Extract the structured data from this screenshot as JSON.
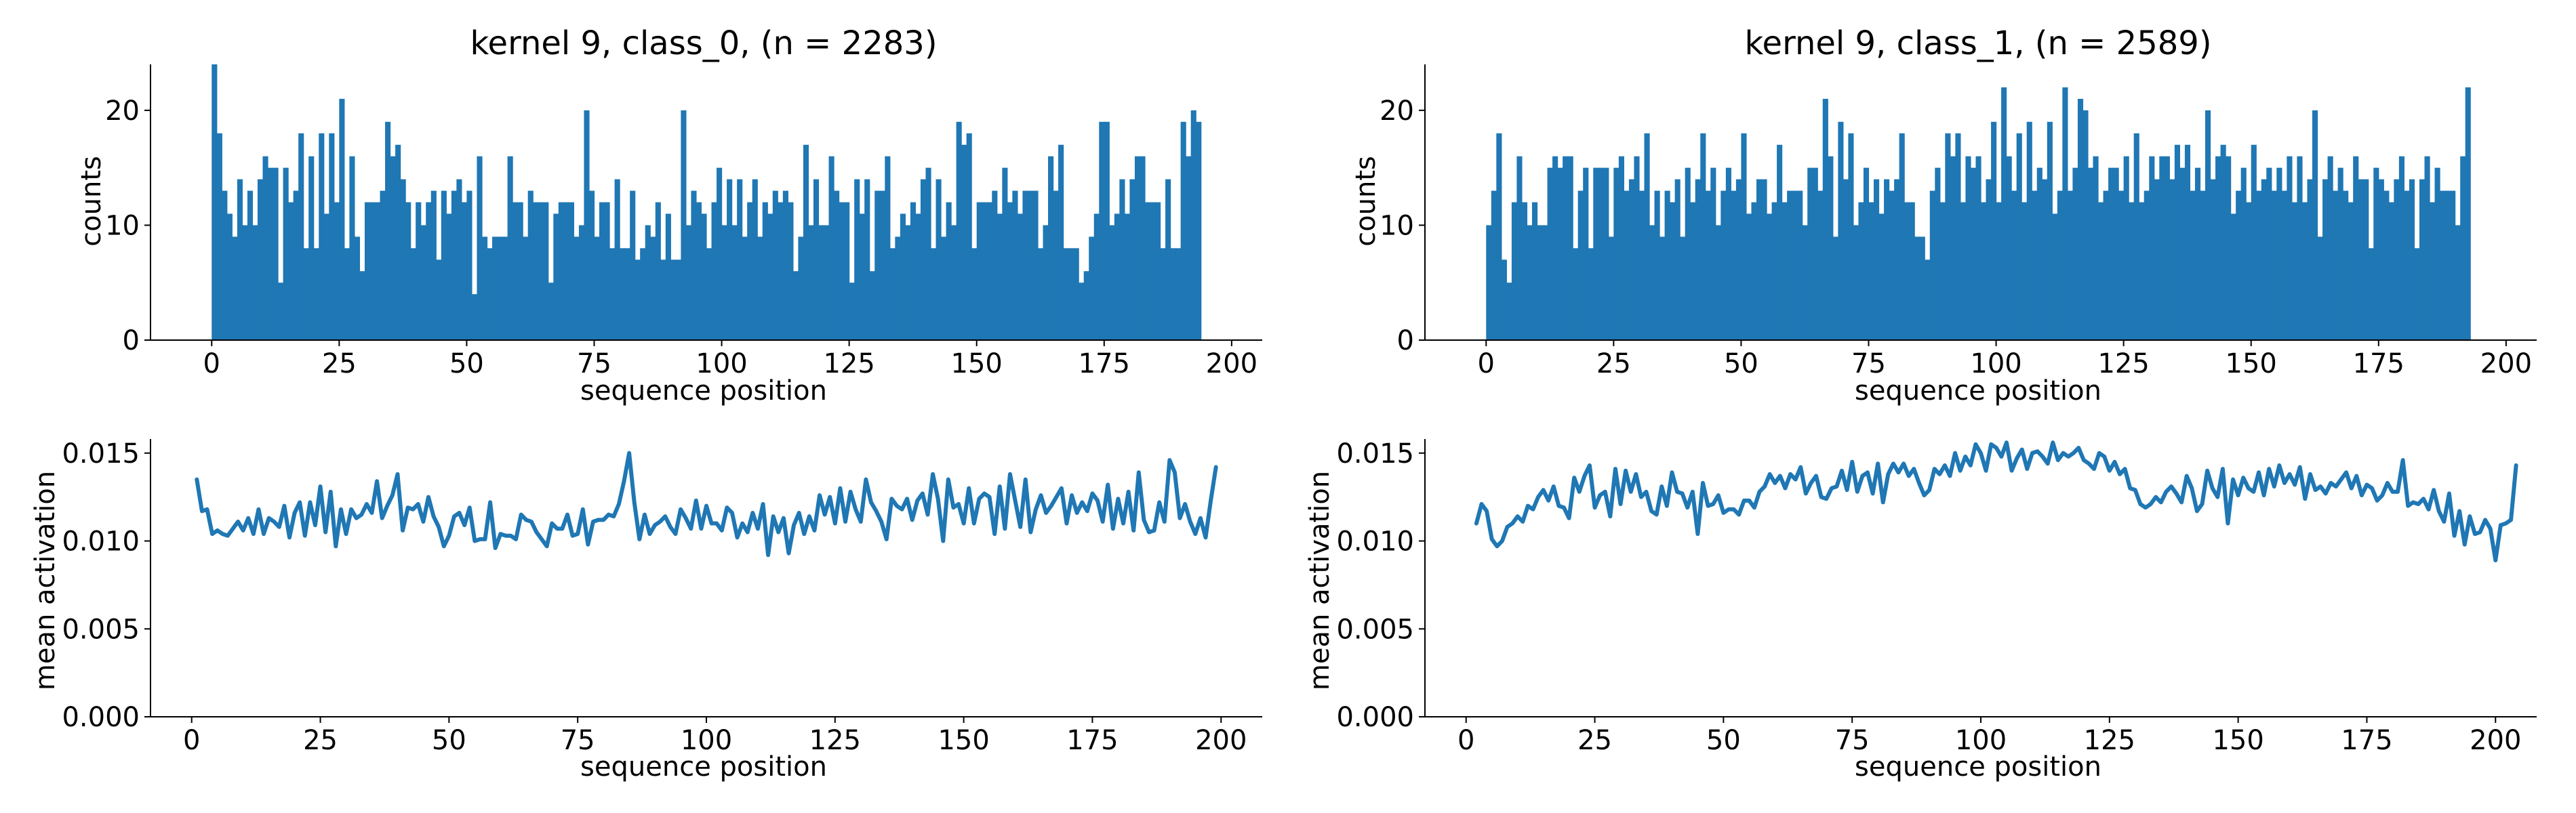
{
  "figure": {
    "background": "#ffffff",
    "bar_color": "#1f77b4",
    "line_color": "#1f77b4"
  },
  "chart_data": [
    {
      "type": "bar",
      "title": "kernel 9, class_0, (n = 2283)",
      "xlabel": "sequence position",
      "ylabel": "counts",
      "xlim": [
        -12,
        206
      ],
      "ylim": [
        0,
        24
      ],
      "xticks": [
        "0",
        "25",
        "50",
        "75",
        "100",
        "125",
        "150",
        "175",
        "200"
      ],
      "yticks": [
        "0",
        "10",
        "20"
      ],
      "bin_start": 0,
      "bin_width": 1,
      "values": [
        24,
        18,
        13,
        11,
        9,
        14,
        10,
        13,
        10,
        14,
        16,
        15,
        15,
        5,
        15,
        12,
        13,
        18,
        8,
        16,
        8,
        18,
        11,
        18,
        12,
        21,
        8,
        16,
        9,
        6,
        12,
        12,
        12,
        13,
        19,
        16,
        17,
        14,
        12,
        8,
        12,
        10,
        12,
        13,
        7,
        13,
        11,
        13,
        14,
        12,
        13,
        4,
        16,
        9,
        8,
        9,
        9,
        9,
        16,
        12,
        12,
        9,
        13,
        12,
        12,
        12,
        5,
        11,
        12,
        12,
        12,
        9,
        10,
        20,
        13,
        9,
        12,
        12,
        8,
        14,
        8,
        8,
        13,
        7,
        8,
        10,
        9,
        12,
        7,
        11,
        7,
        7,
        20,
        10,
        13,
        12,
        11,
        8,
        12,
        15,
        10,
        14,
        10,
        14,
        9,
        12,
        14,
        9,
        12,
        11,
        13,
        12,
        13,
        12,
        6,
        9,
        17,
        10,
        14,
        10,
        10,
        16,
        13,
        12,
        12,
        5,
        14,
        11,
        14,
        6,
        13,
        13,
        16,
        8,
        9,
        11,
        10,
        12,
        11,
        14,
        15,
        8,
        14,
        9,
        12,
        10,
        19,
        17,
        18,
        8,
        12,
        12,
        12,
        13,
        11,
        15,
        12,
        13,
        11,
        13,
        13,
        13,
        8,
        10,
        16,
        13,
        17,
        8,
        8,
        8,
        5,
        6,
        9,
        11,
        19,
        19,
        10,
        11,
        14,
        11,
        14,
        16,
        16,
        12,
        12,
        12,
        8,
        14,
        8,
        8,
        19,
        16,
        20,
        19
      ]
    },
    {
      "type": "bar",
      "title": "kernel 9, class_1, (n = 2589)",
      "xlabel": "sequence position",
      "ylabel": "counts",
      "xlim": [
        -12,
        206
      ],
      "ylim": [
        0,
        24
      ],
      "xticks": [
        "0",
        "25",
        "50",
        "75",
        "100",
        "125",
        "150",
        "175",
        "200"
      ],
      "yticks": [
        "0",
        "10",
        "20"
      ],
      "bin_start": 0,
      "bin_width": 1,
      "values": [
        10,
        13,
        18,
        7,
        5,
        12,
        16,
        12,
        10,
        12,
        10,
        10,
        15,
        16,
        15,
        16,
        16,
        8,
        13,
        15,
        8,
        15,
        15,
        15,
        9,
        15,
        16,
        13,
        14,
        16,
        13,
        18,
        10,
        13,
        9,
        13,
        12,
        14,
        9,
        15,
        12,
        14,
        18,
        13,
        15,
        10,
        13,
        15,
        13,
        14,
        18,
        11,
        12,
        14,
        14,
        11,
        12,
        17,
        12,
        13,
        13,
        13,
        10,
        15,
        15,
        13,
        21,
        16,
        9,
        19,
        14,
        18,
        10,
        12,
        15,
        12,
        14,
        11,
        14,
        13,
        14,
        18,
        12,
        12,
        9,
        9,
        7,
        13,
        15,
        12,
        18,
        16,
        18,
        12,
        16,
        15,
        16,
        12,
        14,
        19,
        12,
        22,
        16,
        13,
        18,
        12,
        19,
        13,
        15,
        14,
        19,
        11,
        13,
        22,
        13,
        15,
        21,
        20,
        15,
        16,
        12,
        13,
        15,
        15,
        13,
        16,
        12,
        18,
        12,
        13,
        16,
        14,
        16,
        16,
        14,
        17,
        15,
        17,
        13,
        15,
        13,
        20,
        14,
        16,
        17,
        16,
        11,
        13,
        15,
        12,
        17,
        13,
        14,
        15,
        13,
        15,
        13,
        16,
        12,
        16,
        12,
        14,
        20,
        9,
        14,
        16,
        13,
        15,
        13,
        12,
        16,
        14,
        14,
        8,
        15,
        14,
        13,
        12,
        14,
        16,
        13,
        14,
        8,
        14,
        16,
        12,
        15,
        13,
        13,
        13,
        10,
        16,
        22
      ]
    },
    {
      "type": "line",
      "title": "",
      "xlabel": "sequence position",
      "ylabel": "mean activation",
      "xlim": [
        -8,
        208
      ],
      "ylim": [
        0,
        0.0158
      ],
      "xticks": [
        "0",
        "25",
        "50",
        "75",
        "100",
        "125",
        "150",
        "175",
        "200"
      ],
      "yticks": [
        "0.000",
        "0.005",
        "0.010",
        "0.015"
      ],
      "x_start": 1,
      "values": [
        0.0135,
        0.0117,
        0.0118,
        0.0104,
        0.0106,
        0.0104,
        0.0103,
        0.0107,
        0.0111,
        0.0106,
        0.0113,
        0.0104,
        0.0118,
        0.0104,
        0.0113,
        0.0111,
        0.0108,
        0.012,
        0.0102,
        0.0116,
        0.0122,
        0.0103,
        0.0122,
        0.0109,
        0.0131,
        0.0105,
        0.0128,
        0.0097,
        0.0118,
        0.0104,
        0.0118,
        0.0113,
        0.0115,
        0.0121,
        0.0116,
        0.0134,
        0.0113,
        0.012,
        0.0126,
        0.0138,
        0.0106,
        0.0119,
        0.0118,
        0.0121,
        0.0111,
        0.0125,
        0.0114,
        0.0108,
        0.0097,
        0.0103,
        0.0114,
        0.0116,
        0.0109,
        0.0119,
        0.01,
        0.0101,
        0.0101,
        0.0122,
        0.0096,
        0.0104,
        0.0103,
        0.0103,
        0.0101,
        0.0115,
        0.0112,
        0.0111,
        0.0105,
        0.0101,
        0.0097,
        0.011,
        0.0107,
        0.0107,
        0.0115,
        0.0103,
        0.0104,
        0.0118,
        0.0098,
        0.0111,
        0.0112,
        0.0112,
        0.0115,
        0.0114,
        0.0121,
        0.0134,
        0.015,
        0.0122,
        0.0101,
        0.0115,
        0.0104,
        0.0109,
        0.0111,
        0.0114,
        0.0108,
        0.0104,
        0.0118,
        0.0113,
        0.0107,
        0.0123,
        0.0107,
        0.012,
        0.011,
        0.011,
        0.0106,
        0.0119,
        0.0116,
        0.0102,
        0.011,
        0.0105,
        0.0116,
        0.0107,
        0.0121,
        0.0092,
        0.0114,
        0.0105,
        0.0113,
        0.0093,
        0.0109,
        0.0116,
        0.0104,
        0.0114,
        0.0106,
        0.0126,
        0.0115,
        0.0125,
        0.011,
        0.013,
        0.0111,
        0.0128,
        0.0118,
        0.0111,
        0.0135,
        0.0122,
        0.0117,
        0.0111,
        0.0101,
        0.0124,
        0.012,
        0.0118,
        0.0124,
        0.0112,
        0.0123,
        0.0127,
        0.0115,
        0.0138,
        0.0124,
        0.01,
        0.0135,
        0.0119,
        0.0121,
        0.011,
        0.013,
        0.011,
        0.0124,
        0.0127,
        0.0125,
        0.0104,
        0.0131,
        0.0107,
        0.0138,
        0.0123,
        0.0108,
        0.0135,
        0.0105,
        0.0118,
        0.0126,
        0.0116,
        0.012,
        0.0125,
        0.013,
        0.011,
        0.0126,
        0.0116,
        0.0122,
        0.0117,
        0.0127,
        0.0123,
        0.0111,
        0.0132,
        0.0107,
        0.0124,
        0.011,
        0.0128,
        0.0106,
        0.0139,
        0.0112,
        0.0105,
        0.0106,
        0.0122,
        0.0111,
        0.0146,
        0.0139,
        0.0113,
        0.0121,
        0.0111,
        0.0104,
        0.0113,
        0.0102,
        0.0123,
        0.0142
      ]
    },
    {
      "type": "line",
      "title": "",
      "xlabel": "sequence position",
      "ylabel": "mean activation",
      "xlim": [
        -8,
        208
      ],
      "ylim": [
        0,
        0.0158
      ],
      "xticks": [
        "0",
        "25",
        "50",
        "75",
        "100",
        "125",
        "150",
        "175",
        "200"
      ],
      "yticks": [
        "0.000",
        "0.005",
        "0.010",
        "0.015"
      ],
      "x_start": 2,
      "values": [
        0.011,
        0.0121,
        0.0117,
        0.0101,
        0.0097,
        0.01,
        0.0108,
        0.011,
        0.0114,
        0.0111,
        0.012,
        0.0118,
        0.0125,
        0.0129,
        0.0123,
        0.0131,
        0.012,
        0.0119,
        0.0113,
        0.0136,
        0.0128,
        0.0137,
        0.0143,
        0.0119,
        0.0126,
        0.0128,
        0.0114,
        0.0141,
        0.0121,
        0.014,
        0.0128,
        0.0138,
        0.0125,
        0.0128,
        0.0117,
        0.0115,
        0.0131,
        0.012,
        0.0139,
        0.0128,
        0.0127,
        0.0119,
        0.0128,
        0.0104,
        0.0133,
        0.012,
        0.0121,
        0.0126,
        0.0116,
        0.0118,
        0.0118,
        0.0115,
        0.0123,
        0.0123,
        0.0119,
        0.0128,
        0.0131,
        0.0138,
        0.0133,
        0.0137,
        0.013,
        0.0138,
        0.0135,
        0.0142,
        0.0127,
        0.0133,
        0.0137,
        0.0125,
        0.0124,
        0.013,
        0.0131,
        0.014,
        0.0129,
        0.0145,
        0.0128,
        0.0137,
        0.0139,
        0.0127,
        0.0144,
        0.0122,
        0.0138,
        0.0144,
        0.0139,
        0.0144,
        0.0137,
        0.0141,
        0.0133,
        0.0126,
        0.0129,
        0.0141,
        0.0138,
        0.0143,
        0.0137,
        0.015,
        0.014,
        0.0148,
        0.0143,
        0.0155,
        0.015,
        0.014,
        0.0155,
        0.0153,
        0.0148,
        0.0156,
        0.014,
        0.0147,
        0.0152,
        0.0141,
        0.015,
        0.0151,
        0.0148,
        0.0144,
        0.0156,
        0.0146,
        0.015,
        0.0148,
        0.015,
        0.0153,
        0.0146,
        0.0144,
        0.0141,
        0.015,
        0.0148,
        0.014,
        0.0145,
        0.0138,
        0.0141,
        0.013,
        0.0129,
        0.0121,
        0.0119,
        0.0121,
        0.0125,
        0.0122,
        0.0128,
        0.0131,
        0.0127,
        0.0122,
        0.0137,
        0.013,
        0.0117,
        0.0121,
        0.014,
        0.013,
        0.0125,
        0.0141,
        0.011,
        0.0135,
        0.0126,
        0.0136,
        0.013,
        0.0128,
        0.0139,
        0.0126,
        0.0141,
        0.0131,
        0.0143,
        0.0133,
        0.0138,
        0.0132,
        0.0142,
        0.0124,
        0.0138,
        0.0129,
        0.0131,
        0.0127,
        0.0133,
        0.0131,
        0.0135,
        0.0139,
        0.013,
        0.0137,
        0.0126,
        0.0132,
        0.013,
        0.0123,
        0.0126,
        0.0133,
        0.0128,
        0.0128,
        0.0146,
        0.012,
        0.0122,
        0.0121,
        0.0124,
        0.0118,
        0.0129,
        0.0117,
        0.0111,
        0.0127,
        0.0103,
        0.0117,
        0.0098,
        0.0114,
        0.0104,
        0.0105,
        0.0112,
        0.0107,
        0.0089,
        0.0109,
        0.011,
        0.0112,
        0.0143
      ]
    }
  ]
}
